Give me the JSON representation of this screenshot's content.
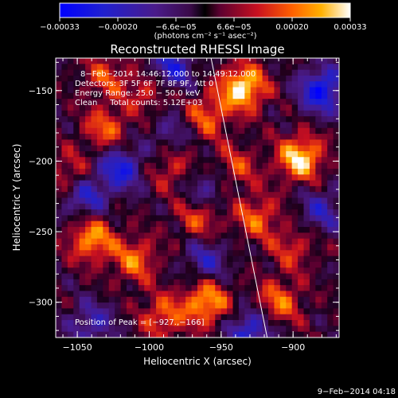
{
  "chart_data": {
    "type": "heatmap",
    "title": "Reconstructed RHESSI Image",
    "xlabel": "Heliocentric X (arcsec)",
    "ylabel": "Heliocentric Y (arcsec)",
    "xlim": [
      -1065,
      -868
    ],
    "ylim": [
      -325,
      -127
    ],
    "xticks": [
      {
        "value": -1050,
        "label": "−1050"
      },
      {
        "value": -1000,
        "label": "−1000"
      },
      {
        "value": -950,
        "label": "−950"
      },
      {
        "value": -900,
        "label": "−900"
      }
    ],
    "yticks": [
      {
        "value": -150,
        "label": "−150"
      },
      {
        "value": -200,
        "label": "−200"
      },
      {
        "value": -250,
        "label": "−250"
      },
      {
        "value": -300,
        "label": "−300"
      }
    ],
    "colorbar": {
      "min": -0.00033,
      "max": 0.00033,
      "tick_labels": [
        "−0.00033",
        "−0.00020",
        "−6.6e−05",
        "6.6e−05",
        "0.00020",
        "0.00033"
      ],
      "units_label": "(photons cm⁻² s⁻¹ asec⁻²)"
    },
    "annotations": [
      "8−Feb−2014 14:46:12.000 to 14:49:12.000",
      "Detectors: 3F 5F 6F 7F 8F 9F, Att 0",
      "Energy Range: 25.0 − 50.0 keV",
      "Clean     Total counts: 5.12E+03"
    ],
    "peak_label": "Position of Peak = [−927.,−166]",
    "limb_line": [
      {
        "x": -957,
        "y": -127
      },
      {
        "x": -918,
        "y": -325
      }
    ],
    "hotspots": [
      {
        "x": -935,
        "y": -148,
        "amp": 1.0
      },
      {
        "x": -895,
        "y": -198,
        "amp": 0.95
      },
      {
        "x": -1030,
        "y": -177,
        "amp": 0.55
      },
      {
        "x": -960,
        "y": -168,
        "amp": 0.55
      },
      {
        "x": -1000,
        "y": -150,
        "amp": 0.45
      },
      {
        "x": -1040,
        "y": -255,
        "amp": 0.75
      },
      {
        "x": -1010,
        "y": -270,
        "amp": 0.6
      },
      {
        "x": -960,
        "y": -300,
        "amp": 0.8
      },
      {
        "x": -910,
        "y": -300,
        "amp": 0.6
      },
      {
        "x": -990,
        "y": -310,
        "amp": 0.55
      },
      {
        "x": -925,
        "y": -240,
        "amp": 0.55
      },
      {
        "x": -965,
        "y": -240,
        "amp": 0.5
      },
      {
        "x": -900,
        "y": -262,
        "amp": 0.4
      },
      {
        "x": -1055,
        "y": -210,
        "amp": 0.45
      },
      {
        "x": -985,
        "y": -205,
        "amp": 0.4
      },
      {
        "x": -940,
        "y": -205,
        "amp": 0.45
      },
      {
        "x": -1030,
        "y": -140,
        "amp": 0.45
      },
      {
        "x": -880,
        "y": -150,
        "amp": -0.9
      },
      {
        "x": -985,
        "y": -135,
        "amp": -0.7
      },
      {
        "x": -1045,
        "y": -225,
        "amp": -0.65
      },
      {
        "x": -1020,
        "y": -205,
        "amp": -0.75
      },
      {
        "x": -960,
        "y": -220,
        "amp": -0.45
      },
      {
        "x": -880,
        "y": -235,
        "amp": -0.5
      },
      {
        "x": -960,
        "y": -270,
        "amp": -0.5
      },
      {
        "x": -1040,
        "y": -315,
        "amp": -0.5
      },
      {
        "x": -930,
        "y": -320,
        "amp": -0.7
      },
      {
        "x": -985,
        "y": -180,
        "amp": -0.35
      }
    ]
  },
  "footer": {
    "date_stamp": "9−Feb−2014 04:18"
  }
}
